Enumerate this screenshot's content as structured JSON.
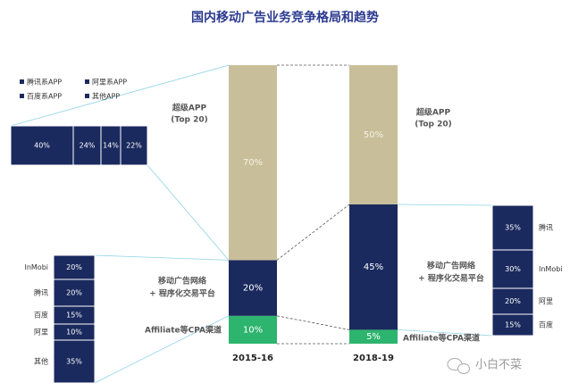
{
  "chart_data": {
    "type": "bar",
    "title": "国内移动广告业务竞争格局和趋势",
    "categories": [
      "2015-16",
      "2018-19"
    ],
    "ylim": [
      0,
      100
    ],
    "series": [
      {
        "label": "Affiliate等CPA渠道",
        "values": [
          10,
          5
        ],
        "color": "#2db46e"
      },
      {
        "label": "移动广告网络\n+ 程序化交易平台",
        "values": [
          20,
          45
        ],
        "color": "#1b2a5e"
      },
      {
        "label": "超级APP\n(Top 20)",
        "values": [
          70,
          50
        ],
        "color": "#c8bf9a"
      }
    ],
    "value_labels": [
      [
        "10%",
        "20%",
        "70%"
      ],
      [
        "5%",
        "45%",
        "50%"
      ]
    ],
    "legend": {
      "entries": [
        "腾讯系APP",
        "阿里系APP",
        "百度系APP",
        "其他APP"
      ],
      "position": "top-left"
    },
    "super_app_breakdown": {
      "labels": [
        "40%",
        "24%",
        "14%",
        "22%"
      ],
      "values": [
        40,
        24,
        14,
        22
      ]
    },
    "network_breakdown_2015_16": {
      "names": [
        "InMobi",
        "腾讯",
        "百度",
        "阿里",
        "其他"
      ],
      "labels": [
        "20%",
        "20%",
        "15%",
        "10%",
        "35%"
      ],
      "values": [
        20,
        20,
        15,
        10,
        35
      ]
    },
    "network_breakdown_2018_19": {
      "names": [
        "腾讯",
        "InMobi",
        "阿里",
        "百度"
      ],
      "labels": [
        "35%",
        "30%",
        "20%",
        "15%"
      ],
      "values": [
        35,
        30,
        20,
        15
      ]
    }
  },
  "watermark": "小白不菜",
  "colors": {
    "title": "#2b3a8f",
    "navy": "#1b2a5e",
    "khaki": "#c8bf9a",
    "green": "#2db46e",
    "connector": "#8ed3e6",
    "dash": "#555555"
  }
}
